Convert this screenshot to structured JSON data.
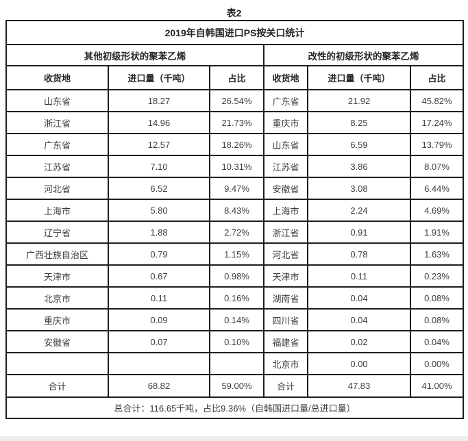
{
  "caption": "表2",
  "table": {
    "title": "2019年自韩国进口PS按关口统计",
    "section_left": "其他初级形状的聚苯乙烯",
    "section_right": "改性的初级形状的聚苯乙烯",
    "columns": [
      "收货地",
      "进口量（千吨）",
      "占比"
    ],
    "rows": [
      {
        "left": [
          "山东省",
          "18.27",
          "26.54%"
        ],
        "right": [
          "广东省",
          "21.92",
          "45.82%"
        ]
      },
      {
        "left": [
          "浙江省",
          "14.96",
          "21.73%"
        ],
        "right": [
          "重庆市",
          "8.25",
          "17.24%"
        ]
      },
      {
        "left": [
          "广东省",
          "12.57",
          "18.26%"
        ],
        "right": [
          "山东省",
          "6.59",
          "13.79%"
        ]
      },
      {
        "left": [
          "江苏省",
          "7.10",
          "10.31%"
        ],
        "right": [
          "江苏省",
          "3.86",
          "8.07%"
        ]
      },
      {
        "left": [
          "河北省",
          "6.52",
          "9.47%"
        ],
        "right": [
          "安徽省",
          "3.08",
          "6.44%"
        ]
      },
      {
        "left": [
          "上海市",
          "5.80",
          "8.43%"
        ],
        "right": [
          "上海市",
          "2.24",
          "4.69%"
        ]
      },
      {
        "left": [
          "辽宁省",
          "1.88",
          "2.72%"
        ],
        "right": [
          "浙江省",
          "0.91",
          "1.91%"
        ]
      },
      {
        "left": [
          "广西壮族自治区",
          "0.79",
          "1.15%"
        ],
        "right": [
          "河北省",
          "0.78",
          "1.63%"
        ]
      },
      {
        "left": [
          "天津市",
          "0.67",
          "0.98%"
        ],
        "right": [
          "天津市",
          "0.11",
          "0.23%"
        ]
      },
      {
        "left": [
          "北京市",
          "0.11",
          "0.16%"
        ],
        "right": [
          "湖南省",
          "0.04",
          "0.08%"
        ]
      },
      {
        "left": [
          "重庆市",
          "0.09",
          "0.14%"
        ],
        "right": [
          "四川省",
          "0.04",
          "0.08%"
        ]
      },
      {
        "left": [
          "安徽省",
          "0.07",
          "0.10%"
        ],
        "right": [
          "福建省",
          "0.02",
          "0.04%"
        ]
      },
      {
        "left": [
          "",
          "",
          ""
        ],
        "right": [
          "北京市",
          "0.00",
          "0.00%"
        ]
      }
    ],
    "totals_left": [
      "合计",
      "68.82",
      "59.00%"
    ],
    "totals_right": [
      "合计",
      "47.83",
      "41.00%"
    ],
    "grand_total": "总合计：116.65千吨，占比9.36%（自韩国进口量/总进口量）"
  }
}
